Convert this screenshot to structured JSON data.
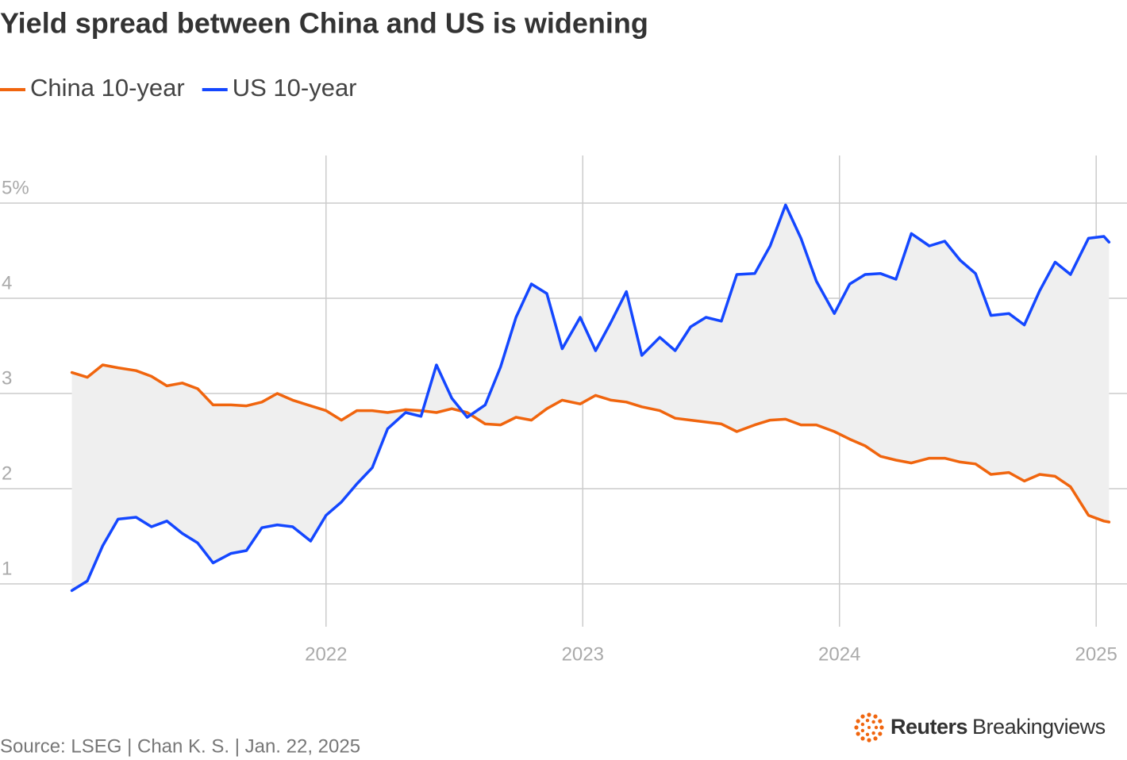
{
  "chart_data": {
    "type": "line",
    "title": "Yield spread between China and US is widening",
    "source": "Source: LSEG | Chan K. S. | Jan. 22, 2025",
    "logo": {
      "brand": "Reuters",
      "product": "Breakingviews"
    },
    "x": [
      2021.01,
      2021.07,
      2021.13,
      2021.19,
      2021.26,
      2021.32,
      2021.38,
      2021.44,
      2021.5,
      2021.56,
      2021.63,
      2021.69,
      2021.75,
      2021.81,
      2021.87,
      2021.94,
      2022.0,
      2022.06,
      2022.12,
      2022.18,
      2022.24,
      2022.31,
      2022.37,
      2022.43,
      2022.49,
      2022.55,
      2022.62,
      2022.68,
      2022.74,
      2022.8,
      2022.86,
      2022.92,
      2022.99,
      2023.05,
      2023.11,
      2023.17,
      2023.23,
      2023.3,
      2023.36,
      2023.42,
      2023.48,
      2023.54,
      2023.6,
      2023.67,
      2023.73,
      2023.79,
      2023.85,
      2023.91,
      2023.98,
      2024.04,
      2024.1,
      2024.16,
      2024.22,
      2024.28,
      2024.35,
      2024.41,
      2024.47,
      2024.53,
      2024.59,
      2024.66,
      2024.72,
      2024.78,
      2024.84,
      2024.9,
      2024.97,
      2025.03,
      2025.05
    ],
    "series": [
      {
        "name": "China 10-year",
        "color": "#f0650e",
        "values": [
          3.22,
          3.17,
          3.3,
          3.27,
          3.24,
          3.18,
          3.08,
          3.11,
          3.05,
          2.88,
          2.88,
          2.87,
          2.91,
          3.0,
          2.93,
          2.87,
          2.82,
          2.72,
          2.82,
          2.82,
          2.8,
          2.83,
          2.82,
          2.8,
          2.84,
          2.8,
          2.68,
          2.67,
          2.75,
          2.72,
          2.84,
          2.93,
          2.89,
          2.98,
          2.93,
          2.91,
          2.86,
          2.82,
          2.74,
          2.72,
          2.7,
          2.68,
          2.6,
          2.67,
          2.72,
          2.73,
          2.67,
          2.67,
          2.6,
          2.52,
          2.45,
          2.34,
          2.3,
          2.27,
          2.32,
          2.32,
          2.28,
          2.26,
          2.15,
          2.17,
          2.08,
          2.15,
          2.13,
          2.02,
          1.72,
          1.66,
          1.65
        ]
      },
      {
        "name": "US 10-year",
        "color": "#1447ff",
        "values": [
          0.93,
          1.03,
          1.4,
          1.68,
          1.7,
          1.6,
          1.66,
          1.53,
          1.43,
          1.22,
          1.32,
          1.35,
          1.59,
          1.62,
          1.6,
          1.45,
          1.72,
          1.86,
          2.05,
          2.22,
          2.63,
          2.8,
          2.76,
          3.3,
          2.95,
          2.75,
          2.88,
          3.28,
          3.8,
          4.15,
          4.05,
          3.47,
          3.8,
          3.45,
          3.75,
          4.07,
          3.4,
          3.59,
          3.45,
          3.7,
          3.8,
          3.76,
          4.25,
          4.26,
          4.55,
          4.98,
          4.63,
          4.18,
          3.84,
          4.15,
          4.25,
          4.26,
          4.2,
          4.68,
          4.55,
          4.6,
          4.4,
          4.26,
          3.82,
          3.84,
          3.72,
          4.08,
          4.38,
          4.25,
          4.63,
          4.65,
          4.59
        ]
      }
    ],
    "spread_fill": "#efefef",
    "xlim": [
      2020.73,
      2025.12
    ],
    "xticks": [
      2022,
      2023,
      2024,
      2025
    ],
    "ylim": [
      0.55,
      5.5
    ],
    "yticks": [
      1,
      2,
      3,
      4,
      {
        "value": 5,
        "label": "5%"
      }
    ],
    "grid": true,
    "legend": "top-left"
  }
}
